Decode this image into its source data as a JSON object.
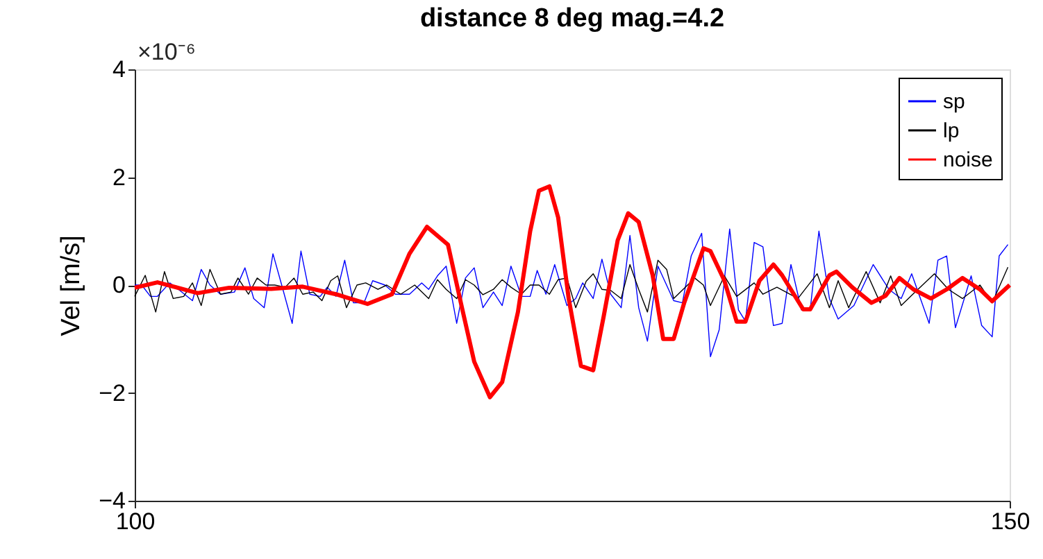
{
  "chart_data": {
    "type": "line",
    "title": "distance 8 deg mag.=4.2",
    "ylabel": "Vel [m/s]",
    "annotations": [
      "×10⁻⁶"
    ],
    "xlim": [
      100,
      150
    ],
    "xticks": [
      100,
      150
    ],
    "ylim": [
      -4,
      4
    ],
    "yticks": [
      -4,
      -2,
      0,
      2,
      4
    ],
    "grid": false,
    "legend": "top right",
    "marker": "none",
    "line_style": "solid",
    "series": [
      {
        "name": "sp",
        "color": "#0000ff",
        "x": [
          100,
          100.4,
          100.9,
          101.3,
          102.0,
          102.5,
          103.3,
          103.8,
          104.3,
          104.9,
          105.7,
          106.3,
          106.8,
          107.4,
          107.9,
          108.4,
          109.0,
          109.5,
          110.0,
          110.6,
          111.0,
          111.5,
          112.0,
          112.5,
          113.1,
          113.6,
          114.3,
          114.9,
          115.7,
          116.4,
          116.8,
          117.3,
          117.8,
          118.4,
          118.9,
          119.4,
          119.9,
          120.5,
          121.0,
          121.5,
          122.1,
          122.6,
          123.0,
          123.5,
          124.0,
          124.7,
          125.2,
          125.6,
          126.2,
          126.7,
          127.2,
          127.8,
          128.3,
          128.8,
          129.3,
          129.9,
          130.8,
          131.3,
          131.8,
          132.4,
          132.9,
          133.4,
          134.0,
          134.5,
          134.9,
          135.4,
          135.9,
          136.5,
          137.0,
          137.5,
          138.1,
          138.6,
          139.1,
          139.7,
          140.2,
          141.1,
          142.2,
          143.1,
          143.8,
          144.4,
          145.4,
          145.9,
          146.4,
          146.9,
          147.8,
          148.4,
          149.0,
          149.4,
          149.9
        ],
        "values": [
          0,
          0,
          -0.21,
          -0.21,
          0.04,
          -0.08,
          -0.29,
          0.29,
          0,
          -0.17,
          -0.13,
          0.32,
          -0.25,
          -0.42,
          0.58,
          0,
          -0.71,
          0.63,
          -0.17,
          -0.21,
          -0.04,
          -0.21,
          0.46,
          -0.33,
          -0.33,
          0.08,
          0,
          -0.17,
          -0.17,
          0.04,
          -0.08,
          0.17,
          0.35,
          -0.71,
          0.13,
          0.32,
          -0.42,
          -0.13,
          -0.38,
          0.35,
          -0.21,
          -0.21,
          0.27,
          -0.17,
          0.38,
          -0.38,
          -0.25,
          0.04,
          -0.25,
          0.48,
          -0.17,
          -0.42,
          0.92,
          -0.42,
          -1.04,
          0.35,
          -0.29,
          -0.33,
          0.54,
          0.96,
          -1.33,
          -0.83,
          1.04,
          -0.46,
          -0.67,
          0.79,
          0.71,
          -0.75,
          -0.71,
          0.38,
          -0.46,
          -0.46,
          1.0,
          -0.25,
          -0.63,
          -0.38,
          0.38,
          -0.08,
          -0.25,
          0.21,
          -0.71,
          0.46,
          0.54,
          -0.79,
          0.17,
          -0.75,
          -0.96,
          0.54,
          0.75
        ]
      },
      {
        "name": "lp",
        "color": "#000000",
        "x": [
          100,
          100.6,
          101.2,
          101.7,
          102.2,
          102.8,
          103.3,
          103.8,
          104.3,
          104.9,
          105.5,
          105.9,
          106.5,
          107.0,
          107.5,
          108.0,
          108.6,
          109.1,
          109.6,
          110.2,
          110.7,
          111.2,
          111.6,
          112.1,
          112.7,
          113.2,
          113.9,
          114.4,
          115.2,
          116.0,
          116.8,
          117.3,
          117.8,
          118.4,
          118.9,
          119.4,
          119.9,
          120.5,
          121.0,
          121.5,
          122.1,
          122.6,
          123.1,
          123.7,
          124.2,
          124.7,
          125.2,
          125.8,
          126.2,
          126.7,
          127.2,
          127.8,
          128.3,
          128.8,
          129.3,
          129.9,
          130.4,
          130.8,
          132.0,
          132.5,
          132.9,
          133.7,
          134.4,
          135.4,
          135.9,
          136.7,
          137.9,
          139.0,
          139.7,
          140.2,
          140.8,
          141.8,
          142.6,
          143.2,
          143.8,
          144.6,
          145.7,
          146.5,
          147.3,
          148.3,
          149.0,
          149.9
        ],
        "values": [
          -0.21,
          0.18,
          -0.5,
          0.25,
          -0.25,
          -0.21,
          0.04,
          -0.38,
          0.29,
          -0.17,
          -0.13,
          0.13,
          -0.17,
          0.13,
          0,
          0,
          -0.04,
          0.13,
          -0.17,
          -0.13,
          -0.29,
          0.08,
          0.17,
          -0.42,
          0,
          0.04,
          -0.08,
          0,
          -0.17,
          0,
          -0.25,
          0.1,
          -0.08,
          -0.25,
          0.1,
          0,
          -0.18,
          -0.08,
          0.1,
          -0.04,
          -0.17,
          0,
          0,
          -0.17,
          0.1,
          0.13,
          -0.42,
          0.07,
          0.21,
          -0.08,
          -0.1,
          -0.25,
          0.38,
          -0.08,
          -0.5,
          0.46,
          0.29,
          -0.25,
          0.13,
          0,
          -0.38,
          0.17,
          -0.21,
          0.04,
          -0.17,
          -0.04,
          -0.25,
          0.21,
          -0.42,
          0.08,
          -0.42,
          0.25,
          -0.33,
          0.17,
          -0.38,
          -0.13,
          0.21,
          -0.08,
          -0.25,
          0,
          -0.33,
          0.33
        ]
      },
      {
        "name": "noise",
        "color": "#ff0000",
        "x": [
          100,
          101.3,
          103.6,
          105.4,
          107.8,
          109.6,
          111.5,
          113.3,
          114.7,
          115.7,
          116.7,
          117.9,
          118.7,
          119.4,
          120.3,
          121.0,
          121.9,
          122.6,
          123.1,
          123.7,
          124.2,
          124.8,
          125.5,
          126.2,
          126.8,
          127.6,
          128.2,
          128.8,
          129.6,
          130.2,
          130.8,
          131.4,
          132.5,
          132.9,
          133.7,
          134.4,
          134.9,
          135.7,
          136.5,
          137.0,
          138.2,
          138.6,
          139.7,
          140.1,
          141.0,
          142.1,
          142.9,
          143.7,
          144.5,
          145.5,
          146.4,
          147.3,
          148.3,
          149.0,
          150
        ],
        "values": [
          -0.05,
          0.05,
          -0.15,
          -0.05,
          -0.07,
          -0.03,
          -0.17,
          -0.35,
          -0.17,
          0.58,
          1.08,
          0.75,
          -0.42,
          -1.42,
          -2.08,
          -1.8,
          -0.5,
          1.0,
          1.75,
          1.83,
          1.25,
          -0.25,
          -1.5,
          -1.58,
          -0.58,
          0.83,
          1.33,
          1.17,
          0.18,
          -1.0,
          -1.0,
          -0.33,
          0.68,
          0.63,
          0.08,
          -0.68,
          -0.68,
          0.08,
          0.38,
          0.18,
          -0.45,
          -0.45,
          0.18,
          0.25,
          -0.04,
          -0.33,
          -0.2,
          0.13,
          -0.08,
          -0.25,
          -0.08,
          0.13,
          -0.08,
          -0.3,
          0
        ]
      }
    ]
  }
}
